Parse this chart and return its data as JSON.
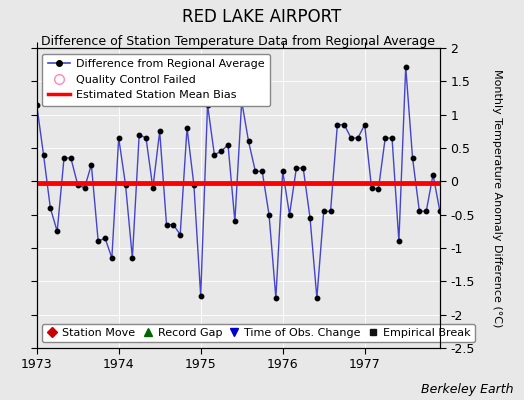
{
  "title": "RED LAKE AIRPORT",
  "subtitle": "Difference of Station Temperature Data from Regional Average",
  "ylabel": "Monthly Temperature Anomaly Difference (°C)",
  "xlabel_bottom": "Berkeley Earth",
  "ylim": [
    -2.5,
    2.0
  ],
  "yticks": [
    -2.5,
    -2.0,
    -1.5,
    -1.0,
    -0.5,
    0.0,
    0.5,
    1.0,
    1.5,
    2.0
  ],
  "xlim_start": 1973.0,
  "xlim_end": 1977.92,
  "mean_bias": -0.02,
  "line_color": "#4444cc",
  "marker_color": "#000000",
  "bias_color": "#ff0000",
  "plot_bg_color": "#e8e8e8",
  "fig_bg_color": "#e8e8e8",
  "data": [
    1.15,
    0.4,
    -0.4,
    -0.75,
    0.35,
    0.35,
    -0.05,
    -0.1,
    0.25,
    -0.9,
    -0.85,
    -1.15,
    0.65,
    -0.05,
    -1.15,
    0.7,
    0.65,
    -0.1,
    0.75,
    -0.65,
    -0.65,
    -0.8,
    0.8,
    -0.05,
    -1.72,
    1.15,
    0.4,
    0.45,
    0.55,
    -0.6,
    1.2,
    0.6,
    0.15,
    0.15,
    -0.5,
    -1.75,
    0.15,
    -0.5,
    0.2,
    0.2,
    -0.55,
    -1.75,
    -0.45,
    -0.45,
    0.85,
    0.85,
    0.65,
    0.65,
    0.85,
    -0.1,
    -0.12,
    0.65,
    0.65,
    -0.9,
    1.72,
    0.35,
    -0.45,
    -0.45,
    0.1,
    -0.45
  ],
  "start_year": 1973,
  "start_month": 1,
  "legend1_labels": [
    "Difference from Regional Average",
    "Quality Control Failed",
    "Estimated Station Mean Bias"
  ],
  "legend2_labels": [
    "Station Move",
    "Record Gap",
    "Time of Obs. Change",
    "Empirical Break"
  ],
  "xticks": [
    1973,
    1974,
    1975,
    1976,
    1977
  ],
  "title_fontsize": 12,
  "subtitle_fontsize": 9,
  "tick_fontsize": 9,
  "ylabel_fontsize": 8,
  "legend_fontsize": 8,
  "berkeley_fontsize": 9
}
